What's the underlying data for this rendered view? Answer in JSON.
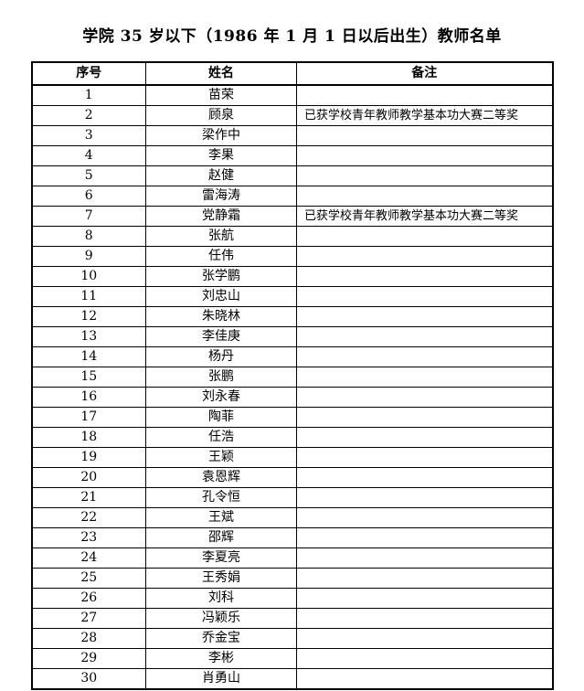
{
  "title": "学院 35 岁以下（1986 年 1 月 1 日以后出生）教师名单",
  "table": {
    "headers": {
      "no": "序号",
      "name": "姓名",
      "remark": "备注"
    },
    "rows": [
      {
        "no": "1",
        "name": "苗荣",
        "remark": ""
      },
      {
        "no": "2",
        "name": "顾泉",
        "remark": "已获学校青年教师教学基本功大赛二等奖"
      },
      {
        "no": "3",
        "name": "梁作中",
        "remark": ""
      },
      {
        "no": "4",
        "name": "李果",
        "remark": ""
      },
      {
        "no": "5",
        "name": "赵健",
        "remark": ""
      },
      {
        "no": "6",
        "name": "雷海涛",
        "remark": ""
      },
      {
        "no": "7",
        "name": "党静霜",
        "remark": "已获学校青年教师教学基本功大赛二等奖"
      },
      {
        "no": "8",
        "name": "张航",
        "remark": ""
      },
      {
        "no": "9",
        "name": "任伟",
        "remark": ""
      },
      {
        "no": "10",
        "name": "张学鹏",
        "remark": ""
      },
      {
        "no": "11",
        "name": "刘忠山",
        "remark": ""
      },
      {
        "no": "12",
        "name": "朱晓林",
        "remark": ""
      },
      {
        "no": "13",
        "name": "李佳庚",
        "remark": ""
      },
      {
        "no": "14",
        "name": "杨丹",
        "remark": ""
      },
      {
        "no": "15",
        "name": "张鹏",
        "remark": ""
      },
      {
        "no": "16",
        "name": "刘永春",
        "remark": ""
      },
      {
        "no": "17",
        "name": "陶菲",
        "remark": ""
      },
      {
        "no": "18",
        "name": "任浩",
        "remark": ""
      },
      {
        "no": "19",
        "name": "王颖",
        "remark": ""
      },
      {
        "no": "20",
        "name": "袁恩辉",
        "remark": ""
      },
      {
        "no": "21",
        "name": "孔令恒",
        "remark": ""
      },
      {
        "no": "22",
        "name": "王斌",
        "remark": ""
      },
      {
        "no": "23",
        "name": "邵辉",
        "remark": ""
      },
      {
        "no": "24",
        "name": "李夏亮",
        "remark": ""
      },
      {
        "no": "25",
        "name": "王秀娟",
        "remark": ""
      },
      {
        "no": "26",
        "name": "刘科",
        "remark": ""
      },
      {
        "no": "27",
        "name": "冯颖乐",
        "remark": ""
      },
      {
        "no": "28",
        "name": "乔金宝",
        "remark": ""
      },
      {
        "no": "29",
        "name": "李彬",
        "remark": ""
      },
      {
        "no": "30",
        "name": "肖勇山",
        "remark": ""
      }
    ]
  }
}
